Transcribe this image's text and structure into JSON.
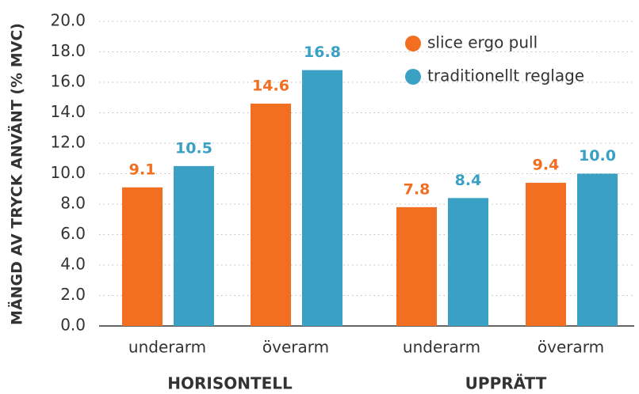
{
  "chart_data": {
    "type": "bar",
    "y_label": "MÄNGD AV TRYCK ANVÄNT (% MVC)",
    "categories": [
      "underarm",
      "överarm",
      "underarm",
      "överarm"
    ],
    "group_labels": [
      "HORISONTELL",
      "UPPRÄTT"
    ],
    "series": [
      {
        "name": "slice ergo pull",
        "color": "#f26f21",
        "values": [
          9.1,
          14.6,
          7.8,
          9.4
        ]
      },
      {
        "name": "traditionellt reglage",
        "color": "#3aa0c4",
        "values": [
          10.5,
          16.8,
          8.4,
          10.0
        ],
        "value_labels": [
          "10.5",
          "16.8",
          "8.4",
          "10.0"
        ]
      }
    ],
    "ylim": [
      0,
      20
    ],
    "yticks": [
      {
        "value": 0,
        "label": "0.0"
      },
      {
        "value": 2,
        "label": "2.0"
      },
      {
        "value": 4,
        "label": "4.0"
      },
      {
        "value": 6,
        "label": "6.0"
      },
      {
        "value": 8,
        "label": "8.0"
      },
      {
        "value": 10,
        "label": "10.0"
      },
      {
        "value": 12,
        "label": "12.0"
      },
      {
        "value": 14,
        "label": "14.0"
      },
      {
        "value": 16,
        "label": "16.0"
      },
      {
        "value": 18,
        "label": "18.0"
      },
      {
        "value": 20,
        "label": "20.0"
      }
    ],
    "grid": true,
    "legend": "top-right"
  }
}
